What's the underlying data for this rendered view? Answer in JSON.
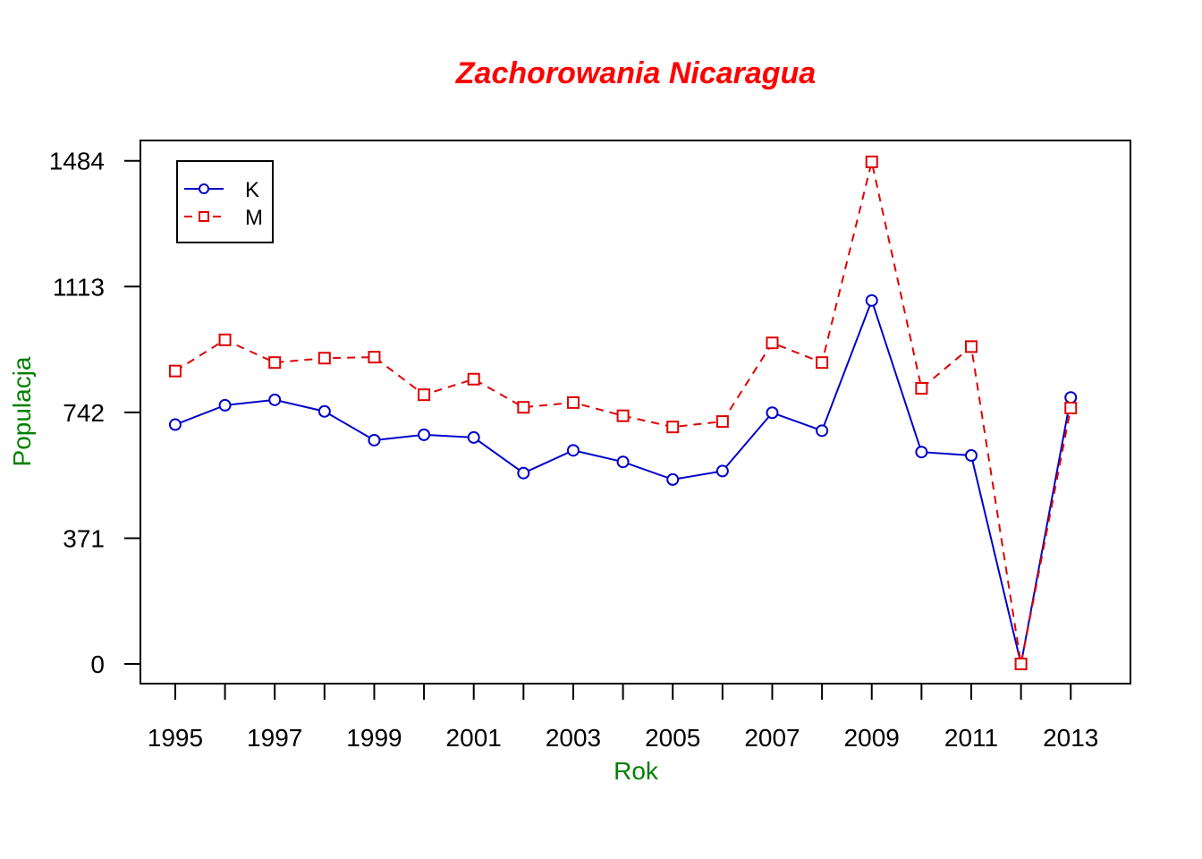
{
  "colors": {
    "title": "#ff0000",
    "axis_label": "#008000",
    "series_k": "#0000cc",
    "series_m": "#e00000",
    "axis": "#000000"
  },
  "chart_data": {
    "type": "line",
    "title": "Zachorowania Nicaragua",
    "xlabel": "Rok",
    "ylabel": "Populacja",
    "x": [
      1995,
      1996,
      1997,
      1998,
      1999,
      2000,
      2001,
      2002,
      2003,
      2004,
      2005,
      2006,
      2007,
      2008,
      2009,
      2010,
      2011,
      2012,
      2013
    ],
    "x_tick_labels": [
      "1995",
      "1997",
      "1999",
      "2001",
      "2003",
      "2005",
      "2007",
      "2009",
      "2011",
      "2013"
    ],
    "y_ticks": [
      0,
      371,
      742,
      1113,
      1484
    ],
    "y_tick_labels": [
      "0",
      "371",
      "742",
      "1113",
      "1484"
    ],
    "xlim": [
      1994.3,
      2014.2
    ],
    "ylim": [
      -58,
      1544
    ],
    "legend_position": "top-left",
    "grid": false,
    "series": [
      {
        "name": "K",
        "line_style": "solid",
        "marker": "circle",
        "values": [
          706,
          763,
          779,
          745,
          660,
          676,
          668,
          563,
          630,
          596,
          544,
          569,
          741,
          688,
          1072,
          625,
          615,
          0,
          786
        ]
      },
      {
        "name": "M",
        "line_style": "dashed",
        "marker": "square",
        "values": [
          864,
          956,
          889,
          902,
          905,
          794,
          840,
          757,
          771,
          732,
          699,
          715,
          947,
          889,
          1481,
          813,
          936,
          0,
          755
        ]
      }
    ]
  }
}
